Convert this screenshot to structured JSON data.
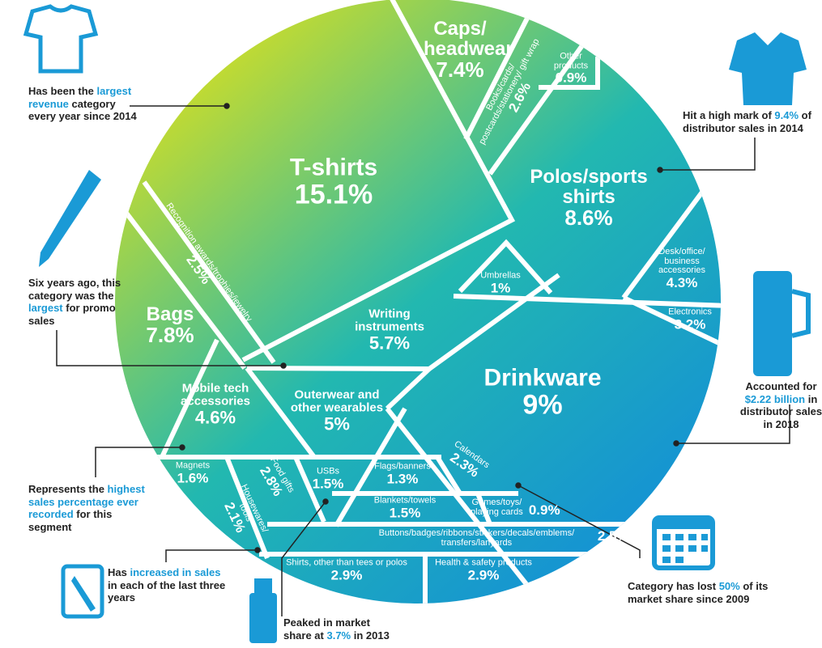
{
  "chart_data": {
    "type": "pie",
    "title": "",
    "categories": [
      {
        "name": "T-shirts",
        "value": 15.1
      },
      {
        "name": "Polos/sports shirts",
        "value": 8.6
      },
      {
        "name": "Drinkware",
        "value": 9
      },
      {
        "name": "Bags",
        "value": 7.8
      },
      {
        "name": "Caps/ headwear",
        "value": 7.4
      },
      {
        "name": "Writing instruments",
        "value": 5.7
      },
      {
        "name": "Outerwear and other wearables",
        "value": 5
      },
      {
        "name": "Mobile tech accessories",
        "value": 4.6
      },
      {
        "name": "Desk/office/ business accessories",
        "value": 4.3
      },
      {
        "name": "Electronics",
        "value": 3.2
      },
      {
        "name": "Shirts, other than tees or polos",
        "value": 2.9
      },
      {
        "name": "Health & safety products",
        "value": 2.9
      },
      {
        "name": "Food gifts",
        "value": 2.8
      },
      {
        "name": "Books/cards/ postcards/stationery/ gift wrap",
        "value": 2.6
      },
      {
        "name": "Recognition awards/trophies/jewelry",
        "value": 2.5
      },
      {
        "name": "Buttons/badges/ribbons/stickers/decals/emblems/ transfers/lanyards",
        "value": 2.5
      },
      {
        "name": "Calendars",
        "value": 2.3
      },
      {
        "name": "Housewares/ tools",
        "value": 2.1
      },
      {
        "name": "Magnets",
        "value": 1.6
      },
      {
        "name": "USBs",
        "value": 1.5
      },
      {
        "name": "Blankets/towels",
        "value": 1.5
      },
      {
        "name": "Flags/banners",
        "value": 1.3
      },
      {
        "name": "Umbrellas",
        "value": 1
      },
      {
        "name": "Other products",
        "value": 0.9
      },
      {
        "name": "Games/toys/ playing cards",
        "value": 0.9
      }
    ],
    "value_labels": [
      "15.1%",
      "8.6%",
      "9%",
      "7.8%",
      "7.4%",
      "5.7%",
      "5%",
      "4.6%",
      "4.3%",
      "3.2%",
      "2.9%",
      "2.9%",
      "2.8%",
      "2.6%",
      "2.5%",
      "2.5%",
      "2.3%",
      "2.1%",
      "1.6%",
      "1.5%",
      "1.5%",
      "1.3%",
      "1%",
      "0.9%",
      "0.9%"
    ],
    "colors": {
      "start": "#c9dc2c",
      "mid": "#22b8b0",
      "end": "#1592d4"
    }
  },
  "notes": {
    "tshirts": {
      "a": "Has been the ",
      "h": "largest revenue",
      "b": " category every year since 2014"
    },
    "polos": {
      "a": "Hit a high mark of ",
      "h": "9.4%",
      "b": " of distributor sales in 2014"
    },
    "writing": {
      "a": "Six years ago, this category was the ",
      "h": "largest",
      "b": " for promo sales"
    },
    "drinkware": {
      "a": "Accounted for ",
      "h": "$2.22 billion",
      "b": " in distributor sales in 2018"
    },
    "mobile": {
      "a": "Represents the ",
      "h": "highest sales percentage ever recorded",
      "b": " for this segment"
    },
    "housewares": {
      "a": "Has ",
      "h": "increased in sales",
      "b": " in each of the last three years"
    },
    "usb": {
      "a": "Peaked in market share at ",
      "h": "3.7%",
      "b": " in 2013"
    },
    "calendars": {
      "a": "Category has lost ",
      "h": "50%",
      "b": " of its market share since 2009"
    }
  }
}
